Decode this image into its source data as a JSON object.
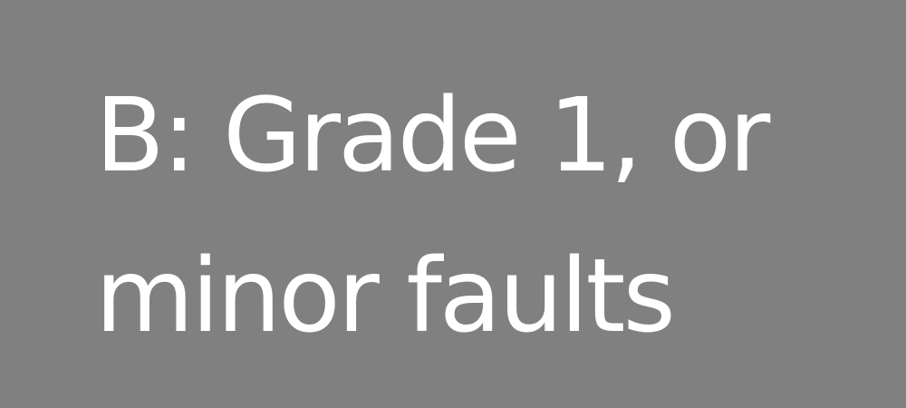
{
  "caption": {
    "line1": "B: Grade 1, or",
    "line2": "minor faults"
  },
  "colors": {
    "background": "#808080",
    "text": "#ffffff"
  }
}
